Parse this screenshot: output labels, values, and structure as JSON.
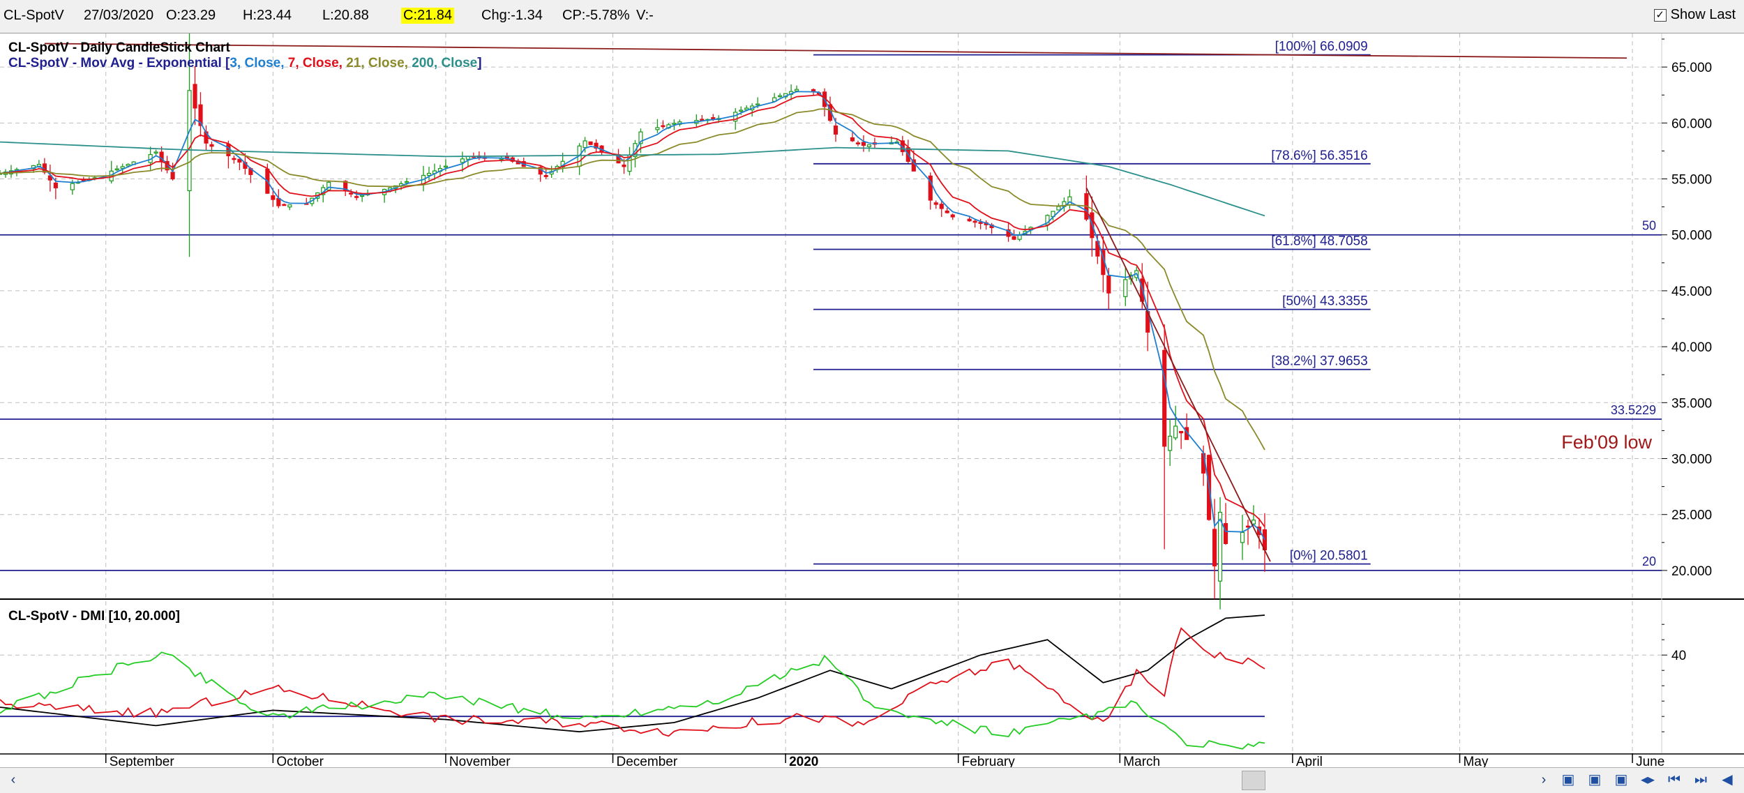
{
  "toolbar": {
    "symbol": "CL-SpotV",
    "date": "27/03/2020",
    "open": "O:23.29",
    "high": "H:23.44",
    "low": "L:20.88",
    "close": "C:21.84",
    "change": "Chg:-1.34",
    "change_pct": "CP:-5.78%",
    "volume": "V:-",
    "show_last_label": "Show Last",
    "show_last_checked": true
  },
  "colors": {
    "up_candle": "#1a9a1a",
    "down_candle": "#e0101a",
    "ema3": "#1e7fd0",
    "ema7": "#e0101a",
    "ema21": "#8a8a2a",
    "ema200": "#2b8f8a",
    "hline": "#1f1f8f",
    "trendline": "#8b1a1a",
    "dmi_adx": "#000000",
    "dmi_plus": "#22cc22",
    "dmi_minus": "#e0101a"
  },
  "chart_data": [
    {
      "type": "candlestick",
      "title": "CL-SpotV - Daily CandleStick Chart",
      "overlay_title_prefix": "CL-SpotV - Mov Avg - Exponential [",
      "overlay_params": [
        {
          "text": "3, Close, ",
          "color": "#1e7fd0"
        },
        {
          "text": "7, Close, ",
          "color": "#e0101a"
        },
        {
          "text": "21, Close, ",
          "color": "#8a8a2a"
        },
        {
          "text": "200, Close",
          "color": "#2b8f8a"
        }
      ],
      "overlay_title_suffix": "]",
      "x_labels": [
        {
          "label": "September",
          "date": "2019-09-01"
        },
        {
          "label": "October",
          "date": "2019-10-01"
        },
        {
          "label": "November",
          "date": "2019-11-01"
        },
        {
          "label": "December",
          "date": "2019-12-01"
        },
        {
          "label": "2020",
          "date": "2020-01-01",
          "bold": true
        },
        {
          "label": "February",
          "date": "2020-02-01"
        },
        {
          "label": "March",
          "date": "2020-03-01"
        },
        {
          "label": "April",
          "date": "2020-04-01"
        },
        {
          "label": "May",
          "date": "2020-05-01"
        },
        {
          "label": "June",
          "date": "2020-06-01"
        }
      ],
      "x_range": [
        "2019-08-13",
        "2020-06-06"
      ],
      "y_range": [
        17.5,
        68
      ],
      "y_ticks": [
        "20.000",
        "25.000",
        "30.000",
        "35.000",
        "40.000",
        "45.000",
        "50.000",
        "55.000",
        "60.000",
        "65.000"
      ],
      "grid": true,
      "price_anchors": [
        [
          "2019-08-13",
          55.5
        ],
        [
          "2019-08-20",
          56.3
        ],
        [
          "2019-08-23",
          54.2
        ],
        [
          "2019-08-30",
          55.1
        ],
        [
          "2019-09-05",
          56.3
        ],
        [
          "2019-09-10",
          57.4
        ],
        [
          "2019-09-13",
          55.0
        ],
        [
          "2019-09-16",
          62.9
        ],
        [
          "2019-09-19",
          58.2
        ],
        [
          "2019-09-25",
          56.5
        ],
        [
          "2019-10-02",
          52.6
        ],
        [
          "2019-10-07",
          52.8
        ],
        [
          "2019-10-11",
          54.7
        ],
        [
          "2019-10-16",
          53.4
        ],
        [
          "2019-10-22",
          54.2
        ],
        [
          "2019-10-29",
          55.5
        ],
        [
          "2019-11-05",
          57.0
        ],
        [
          "2019-11-12",
          56.8
        ],
        [
          "2019-11-19",
          55.2
        ],
        [
          "2019-11-26",
          58.4
        ],
        [
          "2019-12-03",
          56.1
        ],
        [
          "2019-12-06",
          59.2
        ],
        [
          "2019-12-13",
          60.1
        ],
        [
          "2019-12-20",
          60.4
        ],
        [
          "2019-12-27",
          61.7
        ],
        [
          "2020-01-03",
          63.0
        ],
        [
          "2020-01-07",
          62.7
        ],
        [
          "2020-01-10",
          59.0
        ],
        [
          "2020-01-15",
          58.0
        ],
        [
          "2020-01-21",
          58.3
        ],
        [
          "2020-01-27",
          53.1
        ],
        [
          "2020-01-31",
          51.6
        ],
        [
          "2020-02-06",
          50.9
        ],
        [
          "2020-02-11",
          49.6
        ],
        [
          "2020-02-18",
          52.1
        ],
        [
          "2020-02-21",
          53.4
        ],
        [
          "2020-02-24",
          51.4
        ],
        [
          "2020-02-28",
          44.8
        ],
        [
          "2020-03-04",
          46.8
        ],
        [
          "2020-03-06",
          41.3
        ],
        [
          "2020-03-09",
          31.1
        ],
        [
          "2020-03-11",
          32.9
        ],
        [
          "2020-03-13",
          31.7
        ],
        [
          "2020-03-16",
          28.7
        ],
        [
          "2020-03-18",
          20.4
        ],
        [
          "2020-03-19",
          25.2
        ],
        [
          "2020-03-20",
          22.4
        ],
        [
          "2020-03-23",
          23.4
        ],
        [
          "2020-03-25",
          24.5
        ],
        [
          "2020-03-26",
          23.2
        ],
        [
          "2020-03-27",
          21.84
        ]
      ],
      "fibonacci": [
        {
          "label": "[100%] 66.0909",
          "value": 66.0909
        },
        {
          "label": "[78.6%] 56.3516",
          "value": 56.3516
        },
        {
          "label": "[61.8%] 48.7058",
          "value": 48.7058
        },
        {
          "label": "[50%] 43.3355",
          "value": 43.3355
        },
        {
          "label": "[38.2%] 37.9653",
          "value": 37.9653
        },
        {
          "label": "[0%] 20.5801",
          "value": 20.5801
        }
      ],
      "fib_range": [
        "2020-01-06",
        "2020-04-15"
      ],
      "horizontal_lines": [
        {
          "value": 50,
          "label": "50"
        },
        {
          "value": 33.5229,
          "label": "33.5229"
        },
        {
          "value": 20,
          "label": "20"
        }
      ],
      "annotation": {
        "text": "Feb'09 low",
        "color": "#a01818"
      },
      "trendlines": [
        {
          "from": [
            "2019-08-21",
            67.1
          ],
          "to": [
            "2020-05-31",
            65.8
          ]
        },
        {
          "from": [
            "2020-02-24",
            54.2
          ],
          "to": [
            "2020-03-28",
            20.8
          ]
        }
      ],
      "ema200_anchors": [
        [
          "2019-08-13",
          58.3
        ],
        [
          "2019-09-15",
          57.6
        ],
        [
          "2019-11-01",
          57.0
        ],
        [
          "2019-12-20",
          57.2
        ],
        [
          "2020-01-10",
          57.8
        ],
        [
          "2020-02-10",
          57.5
        ],
        [
          "2020-02-28",
          56.1
        ],
        [
          "2020-03-10",
          54.5
        ],
        [
          "2020-03-27",
          51.7
        ]
      ]
    },
    {
      "type": "line",
      "title": "CL-SpotV - DMI [10, 20.000]",
      "y_range": [
        8,
        58
      ],
      "y_ticks": [
        "40"
      ],
      "reference_line": 20,
      "series": [
        {
          "color": "#000000",
          "values": [
            [
              "2019-08-13",
              23
            ],
            [
              "2019-09-10",
              17
            ],
            [
              "2019-10-01",
              22
            ],
            [
              "2019-11-01",
              19
            ],
            [
              "2019-11-25",
              15
            ],
            [
              "2019-12-12",
              18
            ],
            [
              "2019-12-27",
              26
            ],
            [
              "2020-01-09",
              35
            ],
            [
              "2020-01-20",
              29
            ],
            [
              "2020-02-05",
              40
            ],
            [
              "2020-02-17",
              45
            ],
            [
              "2020-02-27",
              31
            ],
            [
              "2020-03-06",
              35
            ],
            [
              "2020-03-13",
              45
            ],
            [
              "2020-03-20",
              52
            ],
            [
              "2020-03-27",
              53
            ]
          ]
        },
        {
          "color": "#e0101a",
          "values": [
            [
              "2019-08-13",
              24
            ],
            [
              "2019-09-10",
              21
            ],
            [
              "2019-10-01",
              29
            ],
            [
              "2019-11-01",
              19
            ],
            [
              "2019-11-25",
              18
            ],
            [
              "2019-12-12",
              15
            ],
            [
              "2020-01-05",
              20
            ],
            [
              "2020-01-15",
              17
            ],
            [
              "2020-01-27",
              30
            ],
            [
              "2020-02-10",
              38
            ],
            [
              "2020-02-27",
              17
            ],
            [
              "2020-03-04",
              34
            ],
            [
              "2020-03-09",
              28
            ],
            [
              "2020-03-12",
              49
            ],
            [
              "2020-03-17",
              41
            ],
            [
              "2020-03-23",
              38
            ],
            [
              "2020-03-27",
              37
            ]
          ]
        },
        {
          "color": "#22cc22",
          "values": [
            [
              "2019-08-13",
              22
            ],
            [
              "2019-09-11",
              41
            ],
            [
              "2019-09-30",
              20
            ],
            [
              "2019-11-01",
              27
            ],
            [
              "2019-11-25",
              19
            ],
            [
              "2019-12-19",
              25
            ],
            [
              "2020-01-09",
              39
            ],
            [
              "2020-01-17",
              22
            ],
            [
              "2020-02-10",
              14
            ],
            [
              "2020-02-24",
              20
            ],
            [
              "2020-03-04",
              24
            ],
            [
              "2020-03-12",
              12
            ],
            [
              "2020-03-20",
              10
            ],
            [
              "2020-03-27",
              10
            ]
          ]
        }
      ]
    }
  ]
}
